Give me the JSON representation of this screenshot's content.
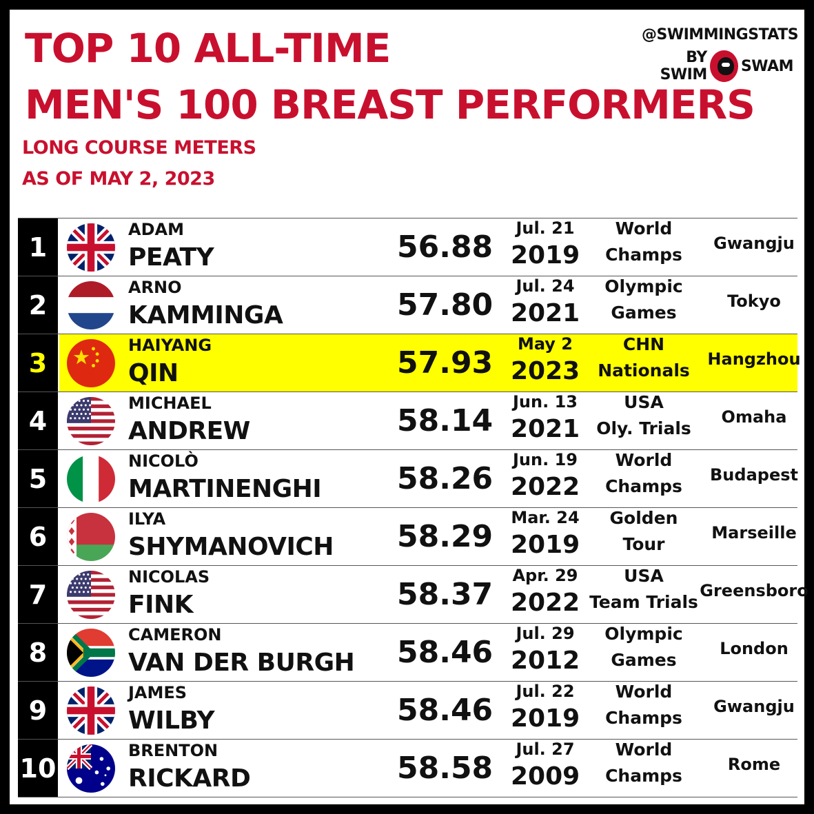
{
  "header": {
    "title_line1": "TOP 10 ALL-TIME",
    "title_line2": "MEN'S 100 BREAST PERFORMERS",
    "subtitle_line1": "LONG COURSE METERS",
    "subtitle_line2": "AS OF MAY 2, 2023"
  },
  "brand": {
    "handle": "@SWIMMINGSTATS",
    "by_left": "BY SWIM",
    "by_right": "SWAM",
    "logo_icon": "swimswam-logo-icon"
  },
  "colors": {
    "title": "#c8102e",
    "highlight": "#ffff00",
    "rank_bg": "#000000"
  },
  "rows": [
    {
      "rank": "1",
      "flag": "gb-flag-icon",
      "first": "ADAM",
      "last": "PEATY",
      "time": "56.88",
      "mday": "Jul. 21",
      "year": "2019",
      "meet1": "World",
      "meet2": "Champs",
      "city": "Gwangju",
      "highlight": false
    },
    {
      "rank": "2",
      "flag": "nl-flag-icon",
      "first": "ARNO",
      "last": "KAMMINGA",
      "time": "57.80",
      "mday": "Jul. 24",
      "year": "2021",
      "meet1": "Olympic",
      "meet2": "Games",
      "city": "Tokyo",
      "highlight": false
    },
    {
      "rank": "3",
      "flag": "cn-flag-icon",
      "first": "HAIYANG",
      "last": "QIN",
      "time": "57.93",
      "mday": "May 2",
      "year": "2023",
      "meet1": "CHN",
      "meet2": "Nationals",
      "city": "Hangzhou",
      "highlight": true
    },
    {
      "rank": "4",
      "flag": "us-flag-icon",
      "first": "MICHAEL",
      "last": "ANDREW",
      "time": "58.14",
      "mday": "Jun. 13",
      "year": "2021",
      "meet1": "USA",
      "meet2": "Oly. Trials",
      "city": "Omaha",
      "highlight": false
    },
    {
      "rank": "5",
      "flag": "it-flag-icon",
      "first": "NICOLÒ",
      "last": "MARTINENGHI",
      "time": "58.26",
      "mday": "Jun. 19",
      "year": "2022",
      "meet1": "World",
      "meet2": "Champs",
      "city": "Budapest",
      "highlight": false
    },
    {
      "rank": "6",
      "flag": "by-flag-icon",
      "first": "ILYA",
      "last": "SHYMANOVICH",
      "time": "58.29",
      "mday": "Mar. 24",
      "year": "2019",
      "meet1": "Golden",
      "meet2": "Tour",
      "city": "Marseille",
      "highlight": false
    },
    {
      "rank": "7",
      "flag": "us-flag-icon",
      "first": "NICOLAS",
      "last": "FINK",
      "time": "58.37",
      "mday": "Apr. 29",
      "year": "2022",
      "meet1": "USA",
      "meet2": "Team Trials",
      "city": "Greensboro",
      "highlight": false
    },
    {
      "rank": "8",
      "flag": "za-flag-icon",
      "first": "CAMERON",
      "last": "VAN DER BURGH",
      "time": "58.46",
      "mday": "Jul. 29",
      "year": "2012",
      "meet1": "Olympic",
      "meet2": "Games",
      "city": "London",
      "highlight": false
    },
    {
      "rank": "9",
      "flag": "gb-flag-icon",
      "first": "JAMES",
      "last": "WILBY",
      "time": "58.46",
      "mday": "Jul. 22",
      "year": "2019",
      "meet1": "World",
      "meet2": "Champs",
      "city": "Gwangju",
      "highlight": false
    },
    {
      "rank": "10",
      "flag": "au-flag-icon",
      "first": "BRENTON",
      "last": "RICKARD",
      "time": "58.58",
      "mday": "Jul. 27",
      "year": "2009",
      "meet1": "World",
      "meet2": "Champs",
      "city": "Rome",
      "highlight": false
    }
  ]
}
